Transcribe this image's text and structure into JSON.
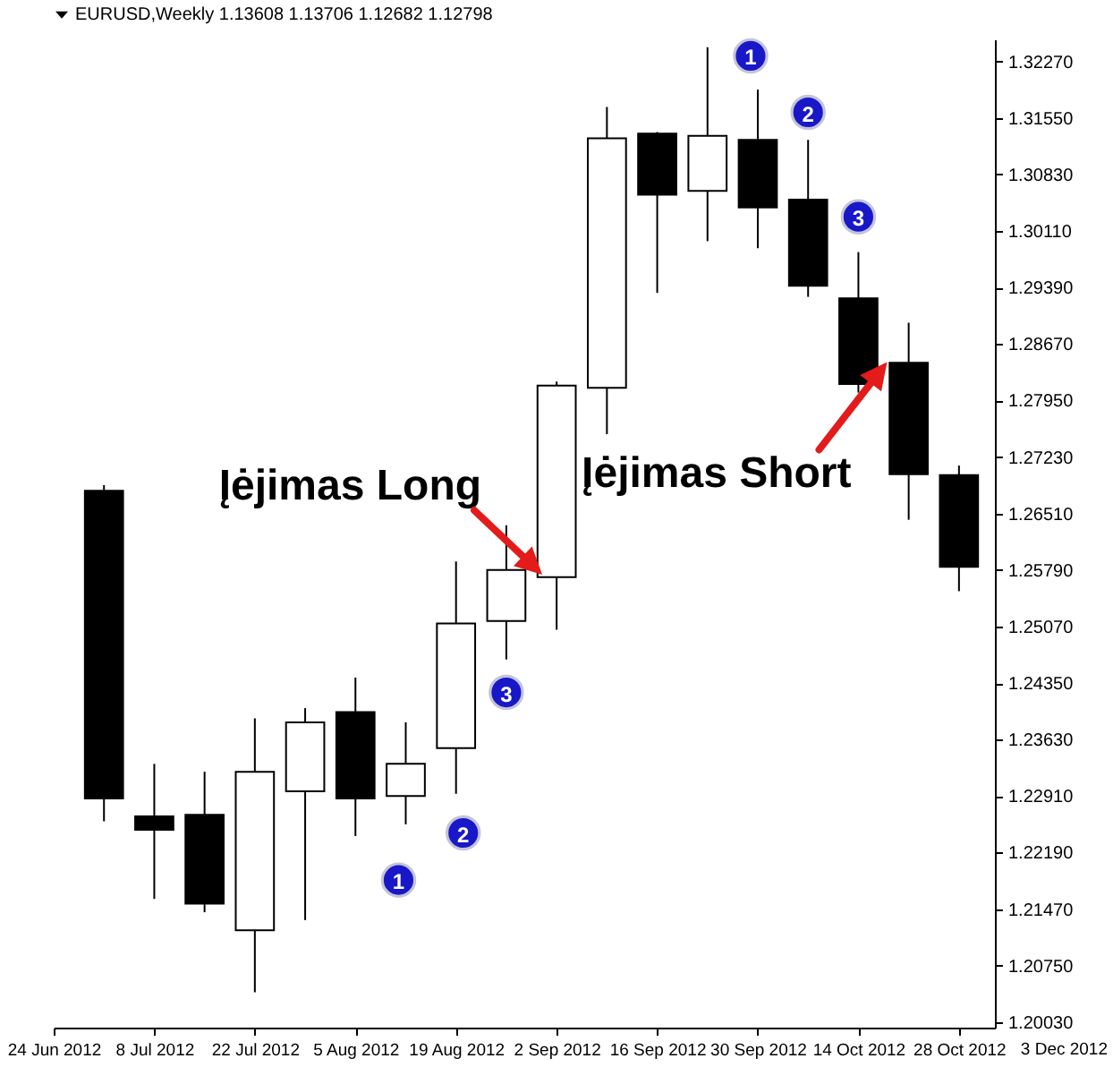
{
  "chart_data": {
    "type": "candlestick",
    "title": "EURUSD,Weekly 1.13608 1.13706 1.12682 1.12798",
    "x": [
      "2012-07-01",
      "2012-07-08",
      "2012-07-15",
      "2012-07-22",
      "2012-07-29",
      "2012-08-05",
      "2012-08-12",
      "2012-08-19",
      "2012-08-26",
      "2012-09-02",
      "2012-09-09",
      "2012-09-16",
      "2012-09-23",
      "2012-09-30",
      "2012-10-07",
      "2012-10-14",
      "2012-10-21",
      "2012-10-28"
    ],
    "ohlc": [
      [
        1.268,
        1.2687,
        1.2259,
        1.2288
      ],
      [
        1.2265,
        1.2332,
        1.216,
        1.2248
      ],
      [
        1.2267,
        1.2322,
        1.2143,
        1.2154
      ],
      [
        1.212,
        1.239,
        1.2041,
        1.2322
      ],
      [
        1.2297,
        1.2403,
        1.2133,
        1.2385
      ],
      [
        1.2398,
        1.2442,
        1.224,
        1.2288
      ],
      [
        1.2291,
        1.2385,
        1.2255,
        1.2332
      ],
      [
        1.2352,
        1.259,
        1.2294,
        1.2511
      ],
      [
        1.2514,
        1.2636,
        1.2465,
        1.2579
      ],
      [
        1.257,
        1.2819,
        1.2503,
        1.2814
      ],
      [
        1.2811,
        1.3169,
        1.2752,
        1.3129
      ],
      [
        1.3135,
        1.3137,
        1.2932,
        1.3057
      ],
      [
        1.3062,
        1.3245,
        1.2998,
        1.3132
      ],
      [
        1.3127,
        1.3191,
        1.2989,
        1.3041
      ],
      [
        1.3051,
        1.3127,
        1.2927,
        1.2941
      ],
      [
        1.2925,
        1.2984,
        1.2805,
        1.2816
      ],
      [
        1.2843,
        1.2894,
        1.2643,
        1.2701
      ],
      [
        1.27,
        1.2712,
        1.2552,
        1.2583
      ]
    ],
    "colors": [
      "#000000",
      "#000000",
      "#000000",
      "#ffffff",
      "#ffffff",
      "#000000",
      "#ffffff",
      "#ffffff",
      "#ffffff",
      "#ffffff",
      "#ffffff",
      "#000000",
      "#ffffff",
      "#000000",
      "#000000",
      "#000000",
      "#000000",
      "#000000"
    ],
    "xlim": [
      "2012-06-24",
      "2012-11-02"
    ],
    "xticks": [
      {
        "value": "2012-06-24",
        "label": "24 Jun 2012"
      },
      {
        "value": "2012-07-08",
        "label": "8 Jul 2012"
      },
      {
        "value": "2012-07-22",
        "label": "22 Jul 2012"
      },
      {
        "value": "2012-08-05",
        "label": "5 Aug 2012"
      },
      {
        "value": "2012-08-19",
        "label": "19 Aug 2012"
      },
      {
        "value": "2012-09-02",
        "label": "2 Sep 2012"
      },
      {
        "value": "2012-09-16",
        "label": "16 Sep 2012"
      },
      {
        "value": "2012-09-30",
        "label": "30 Sep 2012"
      },
      {
        "value": "2012-10-14",
        "label": "14 Oct 2012"
      },
      {
        "value": "2012-10-28",
        "label": "28 Oct 2012"
      }
    ],
    "ylim": [
      1.1996,
      1.3255
    ],
    "yticks": [
      {
        "value": 1.2003,
        "label": "1.20030"
      },
      {
        "value": 1.2075,
        "label": "1.20750"
      },
      {
        "value": 1.2147,
        "label": "1.21470"
      },
      {
        "value": 1.2219,
        "label": "1.22190"
      },
      {
        "value": 1.2291,
        "label": "1.22910"
      },
      {
        "value": 1.2363,
        "label": "1.23630"
      },
      {
        "value": 1.2435,
        "label": "1.24350"
      },
      {
        "value": 1.2507,
        "label": "1.25070"
      },
      {
        "value": 1.2579,
        "label": "1.25790"
      },
      {
        "value": 1.2651,
        "label": "1.26510"
      },
      {
        "value": 1.2723,
        "label": "1.27230"
      },
      {
        "value": 1.2795,
        "label": "1.27950"
      },
      {
        "value": 1.2867,
        "label": "1.28670"
      },
      {
        "value": 1.2939,
        "label": "1.29390"
      },
      {
        "value": 1.3011,
        "label": "1.30110"
      },
      {
        "value": 1.3083,
        "label": "1.30830"
      },
      {
        "value": 1.3155,
        "label": "1.31550"
      },
      {
        "value": 1.3227,
        "label": "1.32270"
      }
    ],
    "grid": false,
    "annotations": [
      {
        "text": "Įėjimas Long",
        "x": "2012-08-31",
        "y": 1.2573
      },
      {
        "text": "Įėjimas Short",
        "x": "2012-10-18",
        "y": 1.2844
      },
      {
        "text": "1",
        "x": "2012-08-11",
        "y": 1.2184
      },
      {
        "text": "2",
        "x": "2012-08-20",
        "y": 1.2244
      },
      {
        "text": "3",
        "x": "2012-08-26",
        "y": 1.2423
      },
      {
        "text": "1",
        "x": "2012-09-29",
        "y": 1.3234
      },
      {
        "text": "2",
        "x": "2012-10-07",
        "y": 1.3162
      },
      {
        "text": "3",
        "x": "2012-10-14",
        "y": 1.3029
      },
      "3 Dec 2012"
    ]
  }
}
